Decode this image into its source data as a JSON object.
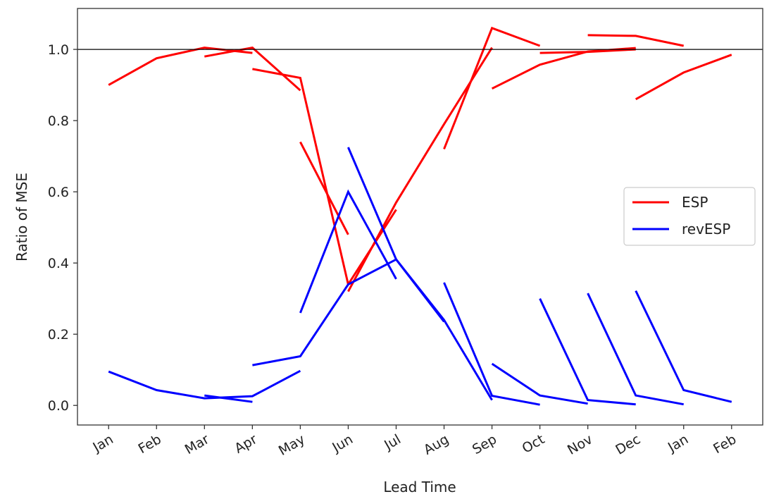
{
  "chart_data": {
    "type": "line",
    "title": "",
    "xlabel": "Lead Time",
    "ylabel": "Ratio of MSE",
    "x_ticks": [
      "Jan",
      "Feb",
      "Mar",
      "Apr",
      "May",
      "Jun",
      "Jul",
      "Aug",
      "Sep",
      "Oct",
      "Nov",
      "Dec",
      "Jan",
      "Feb"
    ],
    "y_ticks": [
      "0.0",
      "0.2",
      "0.4",
      "0.6",
      "0.8",
      "1.0"
    ],
    "y_tick_values": [
      0,
      0.2,
      0.4,
      0.6,
      0.8,
      1.0
    ],
    "xlim": [
      -0.65,
      13.65
    ],
    "ylim": [
      -0.055,
      1.115
    ],
    "reference_line": 1.0,
    "grid": false,
    "legend_position": "center-right",
    "series": [
      {
        "name": "ESP",
        "color": "#ff0000",
        "segments": [
          {
            "start": 0,
            "values": [
              0.9,
              0.975,
              1.005,
              0.99
            ]
          },
          {
            "start": 2,
            "values": [
              0.98,
              1.005,
              0.885
            ]
          },
          {
            "start": 3,
            "values": [
              0.945,
              0.92,
              0.34,
              0.55
            ]
          },
          {
            "start": 4,
            "values": [
              0.74,
              0.48
            ]
          },
          {
            "start": 5,
            "values": [
              0.32,
              0.57,
              0.79,
              1.005
            ]
          },
          {
            "start": 7,
            "values": [
              0.72,
              1.06,
              1.01
            ]
          },
          {
            "start": 8,
            "values": [
              0.89,
              0.957,
              0.994,
              1.004
            ]
          },
          {
            "start": 9,
            "values": [
              0.99,
              0.993,
              1.0
            ]
          },
          {
            "start": 10,
            "values": [
              1.04,
              1.038,
              1.01
            ]
          },
          {
            "start": 11,
            "values": [
              0.86,
              0.935,
              0.985
            ]
          }
        ]
      },
      {
        "name": "revESP",
        "color": "#0000ff",
        "segments": [
          {
            "start": 0,
            "values": [
              0.095,
              0.043,
              0.02,
              0.026,
              0.097
            ]
          },
          {
            "start": 2,
            "values": [
              0.028,
              0.01
            ]
          },
          {
            "start": 3,
            "values": [
              0.113,
              0.138,
              0.34,
              0.41,
              0.235
            ]
          },
          {
            "start": 4,
            "values": [
              0.26,
              0.6,
              0.355
            ]
          },
          {
            "start": 5,
            "values": [
              0.725,
              0.41,
              0.24,
              0.015
            ]
          },
          {
            "start": 7,
            "values": [
              0.345,
              0.027,
              0.002
            ]
          },
          {
            "start": 8,
            "values": [
              0.117,
              0.028,
              0.005
            ]
          },
          {
            "start": 9,
            "values": [
              0.3,
              0.015,
              0.003
            ]
          },
          {
            "start": 10,
            "values": [
              0.315,
              0.028,
              0.003
            ]
          },
          {
            "start": 11,
            "values": [
              0.322,
              0.043,
              0.01
            ]
          }
        ]
      }
    ]
  }
}
